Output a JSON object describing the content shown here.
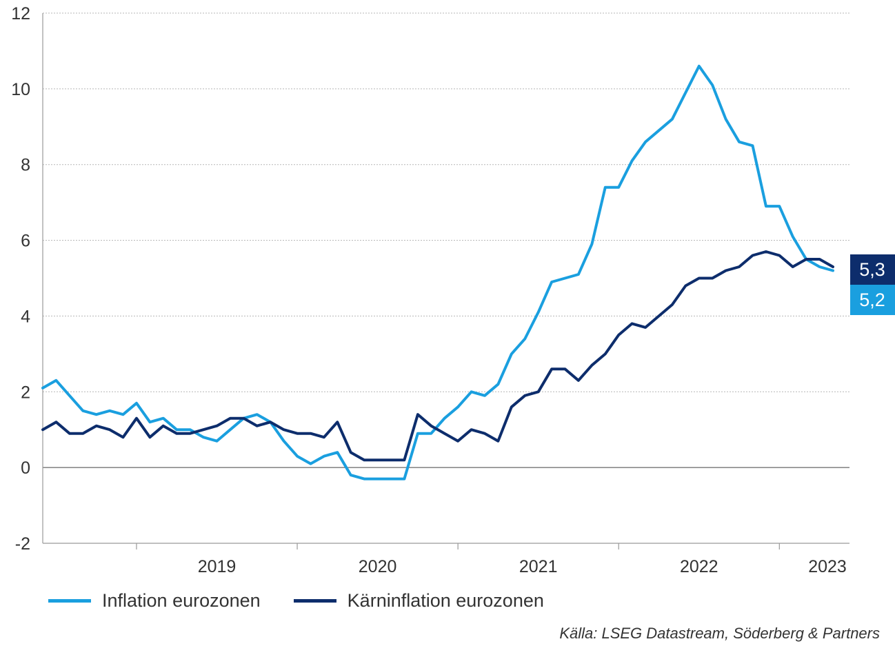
{
  "chart_data": {
    "type": "line",
    "ylim": [
      -2,
      12
    ],
    "yticks": [
      "12",
      "10",
      "8",
      "6",
      "4",
      "2",
      "0",
      "-2"
    ],
    "year_labels": [
      "2019",
      "2020",
      "2021",
      "2022",
      "2023"
    ],
    "grid": true,
    "series": [
      {
        "name": "Inflation eurozonen",
        "color": "#1a9fdf",
        "end_label": "5,2",
        "values": [
          2.1,
          2.3,
          1.9,
          1.5,
          1.4,
          1.5,
          1.4,
          1.7,
          1.2,
          1.3,
          1.0,
          1.0,
          0.8,
          0.7,
          1.0,
          1.3,
          1.4,
          1.2,
          0.7,
          0.3,
          0.1,
          0.3,
          0.4,
          -0.2,
          -0.3,
          -0.3,
          -0.3,
          -0.3,
          0.9,
          0.9,
          1.3,
          1.6,
          2.0,
          1.9,
          2.2,
          3.0,
          3.4,
          4.1,
          4.9,
          5.0,
          5.1,
          5.9,
          7.4,
          7.4,
          8.1,
          8.6,
          8.9,
          9.2,
          9.9,
          10.6,
          10.1,
          9.2,
          8.6,
          8.5,
          6.9,
          6.9,
          6.1,
          5.5,
          5.3,
          5.2
        ]
      },
      {
        "name": "Kärninflation eurozonen",
        "color": "#0d2d6c",
        "end_label": "5,3",
        "values": [
          1.0,
          1.2,
          0.9,
          0.9,
          1.1,
          1.0,
          0.8,
          1.3,
          0.8,
          1.1,
          0.9,
          0.9,
          1.0,
          1.1,
          1.3,
          1.3,
          1.1,
          1.2,
          1.0,
          0.9,
          0.9,
          0.8,
          1.2,
          0.4,
          0.2,
          0.2,
          0.2,
          0.2,
          1.4,
          1.1,
          0.9,
          0.7,
          1.0,
          0.9,
          0.7,
          1.6,
          1.9,
          2.0,
          2.6,
          2.6,
          2.3,
          2.7,
          3.0,
          3.5,
          3.8,
          3.7,
          4.0,
          4.3,
          4.8,
          5.0,
          5.0,
          5.2,
          5.3,
          5.6,
          5.7,
          5.6,
          5.3,
          5.5,
          5.5,
          5.3
        ]
      }
    ]
  },
  "source": "Källa: LSEG Datastream, Söderberg & Partners"
}
